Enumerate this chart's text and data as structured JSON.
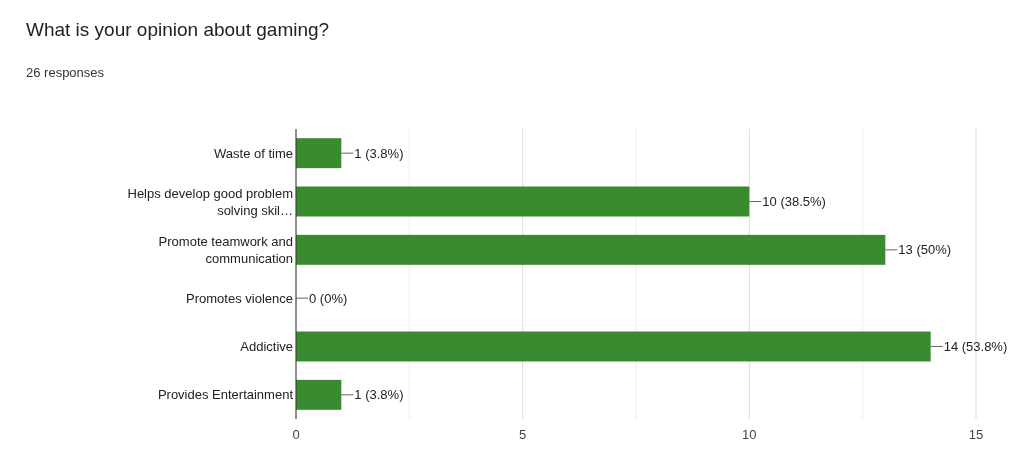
{
  "chart_data": {
    "type": "bar",
    "orientation": "horizontal",
    "title": "What is your opinion about gaming?",
    "subtitle": "26 responses",
    "categories": [
      "Waste of time",
      "Helps develop good problem solving skil…",
      "Promote teamwork and communication",
      "Promotes violence",
      "Addictive",
      "Provides Entertainment"
    ],
    "values": [
      1,
      10,
      13,
      0,
      14,
      1
    ],
    "color": "#3a8a30",
    "value_labels": [
      "1 (3.8%)",
      "10 (38.5%)",
      "13 (50%)",
      "0 (0%)",
      "14 (53.8%)",
      "1 (3.8%)"
    ],
    "xlim": [
      0,
      15
    ],
    "xticks": [
      0,
      {
        "value": 2.5,
        "label": null
      },
      5,
      {
        "value": 7.5,
        "label": null
      },
      10,
      {
        "value": 12.5,
        "label": null
      },
      15
    ],
    "grid": "x"
  }
}
